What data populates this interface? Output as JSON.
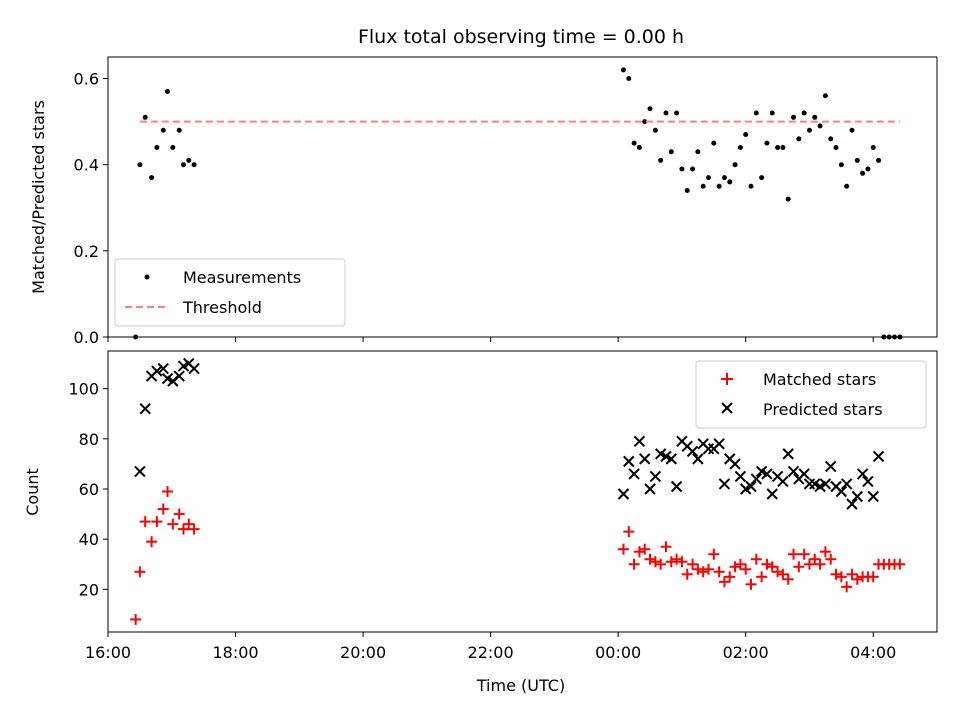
{
  "figure": {
    "title": "Flux total observing time = 0.00 h",
    "xlabel": "Time (UTC)"
  },
  "chart_data": [
    {
      "type": "scatter",
      "panel": "top",
      "ylabel": "Matched/Predicted stars",
      "xlim": [
        "16:00",
        "05:00"
      ],
      "ylim": [
        0,
        0.65
      ],
      "x_ticks": [
        "16:00",
        "18:00",
        "20:00",
        "22:00",
        "00:00",
        "02:00",
        "04:00"
      ],
      "y_ticks": [
        "0.0",
        "0.2",
        "0.4",
        "0.6"
      ],
      "legend_position": "lower-left",
      "series": [
        {
          "name": "Measurements",
          "marker": "dot",
          "color": "#000000",
          "points": [
            [
              "16:26",
              0.0
            ],
            [
              "16:30",
              0.4
            ],
            [
              "16:35",
              0.51
            ],
            [
              "16:41",
              0.37
            ],
            [
              "16:46",
              0.44
            ],
            [
              "16:52",
              0.48
            ],
            [
              "16:56",
              0.57
            ],
            [
              "17:01",
              0.44
            ],
            [
              "17:07",
              0.48
            ],
            [
              "17:11",
              0.4
            ],
            [
              "17:16",
              0.41
            ],
            [
              "17:21",
              0.4
            ],
            [
              "00:05",
              0.62
            ],
            [
              "00:10",
              0.6
            ],
            [
              "00:15",
              0.45
            ],
            [
              "00:20",
              0.44
            ],
            [
              "00:25",
              0.5
            ],
            [
              "00:30",
              0.53
            ],
            [
              "00:35",
              0.48
            ],
            [
              "00:40",
              0.41
            ],
            [
              "00:45",
              0.52
            ],
            [
              "00:50",
              0.43
            ],
            [
              "00:55",
              0.52
            ],
            [
              "01:00",
              0.39
            ],
            [
              "01:05",
              0.34
            ],
            [
              "01:10",
              0.39
            ],
            [
              "01:15",
              0.43
            ],
            [
              "01:20",
              0.35
            ],
            [
              "01:25",
              0.37
            ],
            [
              "01:30",
              0.45
            ],
            [
              "01:35",
              0.35
            ],
            [
              "01:40",
              0.37
            ],
            [
              "01:45",
              0.36
            ],
            [
              "01:50",
              0.4
            ],
            [
              "01:55",
              0.44
            ],
            [
              "02:00",
              0.47
            ],
            [
              "02:05",
              0.35
            ],
            [
              "02:10",
              0.52
            ],
            [
              "02:15",
              0.37
            ],
            [
              "02:20",
              0.45
            ],
            [
              "02:25",
              0.52
            ],
            [
              "02:30",
              0.44
            ],
            [
              "02:35",
              0.44
            ],
            [
              "02:40",
              0.32
            ],
            [
              "02:45",
              0.51
            ],
            [
              "02:50",
              0.46
            ],
            [
              "02:55",
              0.52
            ],
            [
              "03:00",
              0.48
            ],
            [
              "03:05",
              0.51
            ],
            [
              "03:10",
              0.49
            ],
            [
              "03:15",
              0.56
            ],
            [
              "03:20",
              0.46
            ],
            [
              "03:25",
              0.44
            ],
            [
              "03:30",
              0.4
            ],
            [
              "03:35",
              0.35
            ],
            [
              "03:40",
              0.48
            ],
            [
              "03:45",
              0.41
            ],
            [
              "03:50",
              0.38
            ],
            [
              "03:55",
              0.39
            ],
            [
              "04:00",
              0.44
            ],
            [
              "04:05",
              0.41
            ],
            [
              "04:10",
              0.0
            ],
            [
              "04:15",
              0.0
            ],
            [
              "04:20",
              0.0
            ],
            [
              "04:25",
              0.0
            ]
          ]
        },
        {
          "name": "Threshold",
          "marker": "dashed-line",
          "color": "#ff7f7f",
          "points": [
            [
              "16:30",
              0.5
            ],
            [
              "04:25",
              0.5
            ]
          ]
        }
      ]
    },
    {
      "type": "scatter",
      "panel": "bottom",
      "ylabel": "Count",
      "xlim": [
        "16:00",
        "05:00"
      ],
      "ylim": [
        3,
        115
      ],
      "x_ticks": [
        "16:00",
        "18:00",
        "20:00",
        "22:00",
        "00:00",
        "02:00",
        "04:00"
      ],
      "y_ticks": [
        "20",
        "40",
        "60",
        "80",
        "100"
      ],
      "legend_position": "upper-right",
      "series": [
        {
          "name": "Matched stars",
          "marker": "plus",
          "color": "#ff0000",
          "points": [
            [
              "16:26",
              8
            ],
            [
              "16:30",
              27
            ],
            [
              "16:35",
              47
            ],
            [
              "16:41",
              39
            ],
            [
              "16:46",
              47
            ],
            [
              "16:52",
              52
            ],
            [
              "16:56",
              59
            ],
            [
              "17:01",
              46
            ],
            [
              "17:07",
              50
            ],
            [
              "17:11",
              44
            ],
            [
              "17:16",
              46
            ],
            [
              "17:21",
              44
            ],
            [
              "00:05",
              36
            ],
            [
              "00:10",
              43
            ],
            [
              "00:15",
              30
            ],
            [
              "00:20",
              35
            ],
            [
              "00:25",
              36
            ],
            [
              "00:30",
              32
            ],
            [
              "00:35",
              31
            ],
            [
              "00:40",
              30
            ],
            [
              "00:45",
              37
            ],
            [
              "00:50",
              31
            ],
            [
              "00:55",
              32
            ],
            [
              "01:00",
              31
            ],
            [
              "01:05",
              26
            ],
            [
              "01:10",
              30
            ],
            [
              "01:15",
              28
            ],
            [
              "01:20",
              27
            ],
            [
              "01:25",
              28
            ],
            [
              "01:30",
              34
            ],
            [
              "01:35",
              27
            ],
            [
              "01:40",
              23
            ],
            [
              "01:45",
              25
            ],
            [
              "01:50",
              29
            ],
            [
              "01:55",
              30
            ],
            [
              "02:00",
              28
            ],
            [
              "02:05",
              22
            ],
            [
              "02:10",
              32
            ],
            [
              "02:15",
              25
            ],
            [
              "02:20",
              30
            ],
            [
              "02:25",
              29
            ],
            [
              "02:30",
              27
            ],
            [
              "02:35",
              26
            ],
            [
              "02:40",
              24
            ],
            [
              "02:45",
              34
            ],
            [
              "02:50",
              29
            ],
            [
              "02:55",
              34
            ],
            [
              "03:00",
              30
            ],
            [
              "03:05",
              32
            ],
            [
              "03:10",
              30
            ],
            [
              "03:15",
              35
            ],
            [
              "03:20",
              32
            ],
            [
              "03:25",
              26
            ],
            [
              "03:30",
              25
            ],
            [
              "03:35",
              21
            ],
            [
              "03:40",
              26
            ],
            [
              "03:45",
              24
            ],
            [
              "03:50",
              25
            ],
            [
              "03:55",
              25
            ],
            [
              "04:00",
              25
            ],
            [
              "04:05",
              30
            ],
            [
              "04:10",
              30
            ],
            [
              "04:15",
              30
            ],
            [
              "04:20",
              30
            ],
            [
              "04:25",
              30
            ]
          ]
        },
        {
          "name": "Predicted stars",
          "marker": "x",
          "color": "#000000",
          "points": [
            [
              "16:30",
              67
            ],
            [
              "16:35",
              92
            ],
            [
              "16:41",
              105
            ],
            [
              "16:46",
              107
            ],
            [
              "16:52",
              108
            ],
            [
              "16:56",
              104
            ],
            [
              "17:01",
              103
            ],
            [
              "17:07",
              105
            ],
            [
              "17:11",
              109
            ],
            [
              "17:16",
              110
            ],
            [
              "17:21",
              108
            ],
            [
              "00:05",
              58
            ],
            [
              "00:10",
              71
            ],
            [
              "00:15",
              66
            ],
            [
              "00:20",
              79
            ],
            [
              "00:25",
              72
            ],
            [
              "00:30",
              60
            ],
            [
              "00:35",
              65
            ],
            [
              "00:40",
              74
            ],
            [
              "00:45",
              73
            ],
            [
              "00:50",
              72
            ],
            [
              "00:55",
              61
            ],
            [
              "01:00",
              79
            ],
            [
              "01:05",
              77
            ],
            [
              "01:10",
              75
            ],
            [
              "01:15",
              72
            ],
            [
              "01:20",
              78
            ],
            [
              "01:25",
              76
            ],
            [
              "01:30",
              76
            ],
            [
              "01:35",
              78
            ],
            [
              "01:40",
              62
            ],
            [
              "01:45",
              72
            ],
            [
              "01:50",
              70
            ],
            [
              "01:55",
              65
            ],
            [
              "02:00",
              60
            ],
            [
              "02:05",
              61
            ],
            [
              "02:10",
              64
            ],
            [
              "02:15",
              67
            ],
            [
              "02:20",
              66
            ],
            [
              "02:25",
              58
            ],
            [
              "02:30",
              65
            ],
            [
              "02:35",
              63
            ],
            [
              "02:40",
              74
            ],
            [
              "02:45",
              67
            ],
            [
              "02:50",
              64
            ],
            [
              "02:55",
              66
            ],
            [
              "03:00",
              62
            ],
            [
              "03:05",
              62
            ],
            [
              "03:10",
              61
            ],
            [
              "03:15",
              62
            ],
            [
              "03:20",
              69
            ],
            [
              "03:25",
              61
            ],
            [
              "03:30",
              59
            ],
            [
              "03:35",
              62
            ],
            [
              "03:40",
              54
            ],
            [
              "03:45",
              57
            ],
            [
              "03:50",
              66
            ],
            [
              "03:55",
              63
            ],
            [
              "04:00",
              57
            ],
            [
              "04:05",
              73
            ]
          ]
        }
      ]
    }
  ]
}
